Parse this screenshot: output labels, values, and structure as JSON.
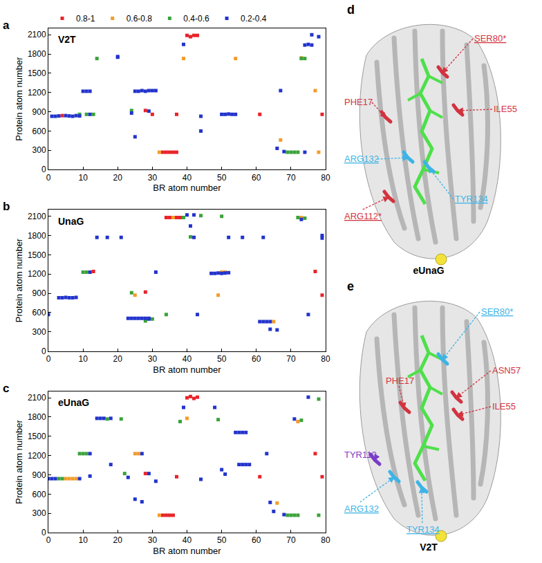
{
  "chart_data": [
    {
      "type": "scatter",
      "panel": "a",
      "title": "V2T",
      "marker": "square",
      "legend": "top",
      "x_label": "BR atom number",
      "y_label": "Protein atom number",
      "xlim": [
        0,
        80
      ],
      "ylim": [
        0,
        2200
      ],
      "xticks": [
        0,
        10,
        20,
        30,
        40,
        50,
        60,
        70,
        80
      ],
      "yticks": [
        0,
        300,
        600,
        900,
        1200,
        1500,
        1800,
        2100
      ],
      "series": [
        {
          "name": "0.8-1",
          "color": "#e8242a",
          "x": [
            4,
            28,
            30,
            33,
            34,
            35,
            36,
            37,
            37,
            40,
            41,
            42,
            43,
            61,
            79
          ],
          "y": [
            840,
            920,
            860,
            270,
            270,
            270,
            270,
            270,
            860,
            2090,
            2070,
            2090,
            2090,
            860,
            860
          ]
        },
        {
          "name": "0.6-0.8",
          "color": "#f39c2a",
          "x": [
            32,
            39,
            54,
            67,
            73,
            77,
            78
          ],
          "y": [
            270,
            1730,
            1730,
            460,
            1740,
            1230,
            270
          ]
        },
        {
          "name": "0.4-0.6",
          "color": "#3aa33a",
          "x": [
            9,
            11,
            13,
            14,
            24,
            69,
            70,
            71,
            72,
            73,
            74
          ],
          "y": [
            860,
            860,
            860,
            1730,
            920,
            270,
            270,
            270,
            270,
            1730,
            1730
          ]
        },
        {
          "name": "0.2-0.4",
          "color": "#2233cc",
          "x": [
            1,
            2,
            3,
            5,
            6,
            7,
            8,
            9,
            10,
            11,
            12,
            12,
            20,
            20,
            24,
            25,
            25,
            26,
            27,
            28,
            29,
            30,
            31,
            29,
            39,
            44,
            44,
            50,
            51,
            52,
            53,
            54,
            66,
            67,
            68,
            74,
            74,
            75,
            76,
            76,
            78
          ],
          "y": [
            830,
            830,
            835,
            840,
            835,
            830,
            840,
            835,
            1220,
            1220,
            1220,
            860,
            1750,
            1760,
            880,
            510,
            1220,
            1220,
            1230,
            1220,
            1230,
            1230,
            1230,
            910,
            1950,
            830,
            600,
            860,
            860,
            865,
            860,
            860,
            330,
            1230,
            280,
            270,
            1940,
            1950,
            1940,
            2100,
            2070
          ]
        }
      ]
    },
    {
      "type": "scatter",
      "panel": "b",
      "title": "UnaG",
      "marker": "square",
      "x_label": "BR atom number",
      "y_label": "Protein atom number",
      "xlim": [
        0,
        80
      ],
      "ylim": [
        0,
        2200
      ],
      "xticks": [
        0,
        10,
        20,
        30,
        40,
        50,
        60,
        70,
        80
      ],
      "yticks": [
        0,
        300,
        600,
        900,
        1200,
        1500,
        1800,
        2100
      ],
      "series": [
        {
          "name": "0.8-1",
          "color": "#e8242a",
          "x": [
            13,
            28,
            34,
            35,
            36,
            37,
            38,
            77,
            79
          ],
          "y": [
            1240,
            920,
            2080,
            2080,
            2080,
            2080,
            2080,
            1240,
            870
          ]
        },
        {
          "name": "0.6-0.8",
          "color": "#f39c2a",
          "x": [
            12,
            25,
            36,
            49,
            50,
            51,
            65,
            73
          ],
          "y": [
            1230,
            870,
            2080,
            870,
            1230,
            1230,
            460,
            2080
          ]
        },
        {
          "name": "0.4-0.6",
          "color": "#3aa33a",
          "x": [
            10,
            11,
            24,
            28,
            30,
            34,
            39,
            41,
            44,
            50,
            72,
            74
          ],
          "y": [
            1230,
            1230,
            910,
            470,
            500,
            570,
            2080,
            1780,
            2110,
            2100,
            2080,
            2070
          ]
        },
        {
          "name": "0.2-0.4",
          "color": "#2233cc",
          "x": [
            0,
            3,
            4,
            5,
            6,
            7,
            8,
            12,
            14,
            17,
            21,
            23,
            24,
            25,
            26,
            27,
            28,
            29,
            29,
            31,
            40,
            41,
            42,
            42,
            43,
            47,
            48,
            49,
            50,
            51,
            52,
            52,
            56,
            61,
            62,
            62,
            63,
            64,
            64,
            66,
            73,
            75,
            79,
            79
          ],
          "y": [
            570,
            830,
            830,
            835,
            830,
            830,
            835,
            1230,
            1770,
            1770,
            1770,
            510,
            510,
            510,
            510,
            510,
            510,
            510,
            500,
            1230,
            2120,
            1950,
            2120,
            1770,
            570,
            1210,
            1210,
            1215,
            1210,
            1215,
            1220,
            1770,
            1770,
            460,
            460,
            1770,
            460,
            460,
            340,
            330,
            2050,
            570,
            1760,
            1800
          ]
        }
      ]
    },
    {
      "type": "scatter",
      "panel": "c",
      "title": "eUnaG",
      "marker": "square",
      "x_label": "BR atom number",
      "y_label": "Protein atom number",
      "xlim": [
        0,
        80
      ],
      "ylim": [
        0,
        2200
      ],
      "xticks": [
        0,
        10,
        20,
        30,
        40,
        50,
        60,
        70,
        80
      ],
      "yticks": [
        0,
        300,
        600,
        900,
        1200,
        1500,
        1800,
        2100
      ],
      "series": [
        {
          "name": "0.8-1",
          "color": "#e8242a",
          "x": [
            28,
            33,
            34,
            35,
            36,
            37,
            40,
            41,
            42,
            43,
            61,
            77,
            79
          ],
          "y": [
            920,
            270,
            270,
            270,
            270,
            870,
            2100,
            2120,
            2090,
            2110,
            870,
            1230,
            870
          ]
        },
        {
          "name": "0.6-0.8",
          "color": "#f39c2a",
          "x": [
            5,
            6,
            7,
            8,
            25,
            26,
            32,
            40,
            66,
            72
          ],
          "y": [
            840,
            840,
            840,
            840,
            1230,
            1230,
            270,
            1780,
            460,
            1730
          ]
        },
        {
          "name": "0.4-0.6",
          "color": "#3aa33a",
          "x": [
            3,
            4,
            9,
            10,
            11,
            17,
            21,
            22,
            38,
            49,
            69,
            70,
            71,
            72,
            73,
            78,
            78
          ],
          "y": [
            840,
            840,
            1230,
            1230,
            1230,
            1770,
            1770,
            920,
            1730,
            1760,
            270,
            270,
            270,
            270,
            1750,
            2080,
            270
          ]
        },
        {
          "name": "0.2-0.4",
          "color": "#2233cc",
          "x": [
            0,
            1,
            2,
            9,
            12,
            12,
            14,
            15,
            16,
            18,
            18,
            23,
            25,
            27,
            27,
            29,
            31,
            39,
            44,
            48,
            50,
            51,
            54,
            55,
            56,
            57,
            55,
            56,
            57,
            58,
            63,
            64,
            65,
            68,
            71,
            75
          ],
          "y": [
            840,
            840,
            840,
            840,
            1230,
            880,
            1780,
            1780,
            1780,
            1780,
            1060,
            860,
            520,
            480,
            1230,
            920,
            800,
            1950,
            830,
            1950,
            980,
            910,
            1560,
            1560,
            1560,
            1560,
            1060,
            1060,
            1060,
            1060,
            1230,
            470,
            330,
            280,
            1770,
            2110
          ]
        }
      ]
    }
  ],
  "structures": [
    {
      "panel": "d",
      "title": "eUnaG",
      "labels": [
        {
          "text": "PHE17",
          "color": "#d2333f",
          "underline": false
        },
        {
          "text": "SER80*",
          "color": "#d2333f",
          "underline": true
        },
        {
          "text": "ILE55",
          "color": "#d2333f",
          "underline": false
        },
        {
          "text": "ARG132",
          "color": "#3cb4e6",
          "underline": true
        },
        {
          "text": "TYR134",
          "color": "#3cb4e6",
          "underline": true
        },
        {
          "text": "ARG112*",
          "color": "#d2333f",
          "underline": true
        }
      ]
    },
    {
      "panel": "e",
      "title": "V2T",
      "labels": [
        {
          "text": "PHE17",
          "color": "#d2333f",
          "underline": false
        },
        {
          "text": "SER80*",
          "color": "#3cb4e6",
          "underline": true
        },
        {
          "text": "ASN57",
          "color": "#d2333f",
          "underline": false
        },
        {
          "text": "ILE55",
          "color": "#d2333f",
          "underline": false
        },
        {
          "text": "TYR110",
          "color": "#7a3cc8",
          "underline": false
        },
        {
          "text": "ARG132",
          "color": "#3cb4e6",
          "underline": true
        },
        {
          "text": "TYR134",
          "color": "#3cb4e6",
          "underline": true
        }
      ]
    }
  ]
}
